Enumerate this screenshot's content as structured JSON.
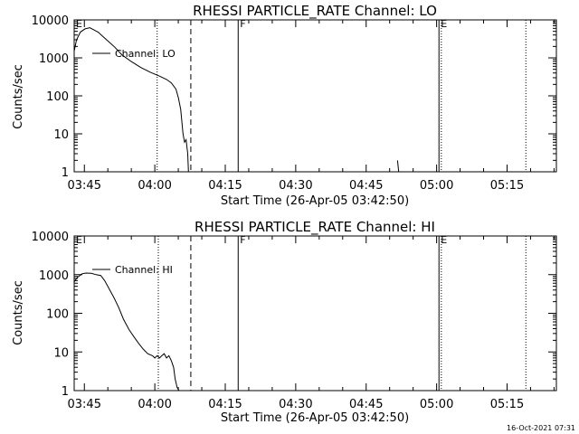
{
  "footer_timestamp": "16-Oct-2021 07:31",
  "chart_data": [
    {
      "type": "line",
      "title": "RHESSI PARTICLE_RATE Channel: LO",
      "xlabel": "Start Time (26-Apr-05 03:42:50)",
      "ylabel": "Counts/sec",
      "yscale": "log",
      "xlim": [
        "03:42:50",
        "05:25:30"
      ],
      "ylim": [
        1,
        10000
      ],
      "xticks": [
        "03:45",
        "04:00",
        "04:15",
        "04:30",
        "04:45",
        "05:00",
        "05:15"
      ],
      "yticks": [
        "1",
        "10",
        "100",
        "1000",
        "10000"
      ],
      "legend": {
        "position": "top-left",
        "entries": [
          "Channel: LO"
        ]
      },
      "markers": [
        {
          "time": "03:42:50",
          "label": "E",
          "style": "solid"
        },
        {
          "time": "04:00:30",
          "label": "",
          "style": "dotted"
        },
        {
          "time": "04:07:40",
          "label": "",
          "style": "dashed"
        },
        {
          "time": "04:17:45",
          "label": "F",
          "style": "solid"
        },
        {
          "time": "05:00:30",
          "label": "E",
          "style": "solid"
        },
        {
          "time": "05:01:00",
          "label": "",
          "style": "dotted"
        },
        {
          "time": "05:19:00",
          "label": "",
          "style": "dotted"
        }
      ],
      "series": [
        {
          "name": "Channel: LO",
          "x": [
            "03:42:50",
            "03:43:20",
            "03:44:10",
            "03:45:10",
            "03:46:10",
            "03:47:00",
            "03:48:00",
            "03:49:00",
            "03:50:00",
            "03:51:30",
            "03:53:00",
            "03:55:00",
            "03:57:00",
            "03:59:00",
            "04:01:00",
            "04:02:30",
            "04:03:30",
            "04:04:30",
            "04:05:00",
            "04:05:30",
            "04:06:00",
            "04:06:20",
            "04:06:40",
            "04:07:00",
            "04:07:10"
          ],
          "y": [
            1500,
            3000,
            4800,
            5800,
            6200,
            5500,
            4700,
            3600,
            2800,
            1900,
            1200,
            800,
            560,
            420,
            330,
            270,
            220,
            150,
            90,
            45,
            10,
            6,
            7,
            3,
            1
          ]
        },
        {
          "name": "",
          "x": [
            "04:51:40",
            "04:51:55"
          ],
          "y": [
            2,
            1
          ]
        }
      ]
    },
    {
      "type": "line",
      "title": "RHESSI PARTICLE_RATE Channel: HI",
      "xlabel": "Start Time (26-Apr-05 03:42:50)",
      "ylabel": "Counts/sec",
      "yscale": "log",
      "xlim": [
        "03:42:50",
        "05:25:30"
      ],
      "ylim": [
        1,
        10000
      ],
      "xticks": [
        "03:45",
        "04:00",
        "04:15",
        "04:30",
        "04:45",
        "05:00",
        "05:15"
      ],
      "yticks": [
        "1",
        "10",
        "100",
        "1000",
        "10000"
      ],
      "legend": {
        "position": "top-left",
        "entries": [
          "Channel: HI"
        ]
      },
      "markers": [
        {
          "time": "03:42:50",
          "label": "E",
          "style": "solid"
        },
        {
          "time": "04:00:45",
          "label": "",
          "style": "dotted"
        },
        {
          "time": "04:07:40",
          "label": "",
          "style": "dashed"
        },
        {
          "time": "04:17:45",
          "label": "F",
          "style": "solid"
        },
        {
          "time": "05:00:30",
          "label": "E",
          "style": "solid"
        },
        {
          "time": "05:01:00",
          "label": "",
          "style": "dotted"
        },
        {
          "time": "05:19:00",
          "label": "",
          "style": "dotted"
        }
      ],
      "series": [
        {
          "name": "Channel: HI",
          "x": [
            "03:42:50",
            "03:43:30",
            "03:44:30",
            "03:45:20",
            "03:46:30",
            "03:47:30",
            "03:48:30",
            "03:49:20",
            "03:50:20",
            "03:51:20",
            "03:52:20",
            "03:53:20",
            "03:54:30",
            "03:55:30",
            "03:56:30",
            "03:57:30",
            "03:58:30",
            "03:59:30",
            "04:00:00",
            "04:00:30",
            "04:01:00",
            "04:01:30",
            "04:02:00",
            "04:02:30",
            "04:03:00",
            "04:03:30",
            "04:04:00",
            "04:04:20",
            "04:04:45",
            "04:05:10"
          ],
          "y": [
            650,
            850,
            1050,
            1100,
            1080,
            1000,
            950,
            700,
            420,
            250,
            140,
            70,
            38,
            25,
            17,
            12,
            9,
            8,
            7,
            8,
            7,
            8,
            9,
            7,
            8,
            6,
            4,
            2,
            1.2,
            1
          ]
        }
      ]
    }
  ]
}
